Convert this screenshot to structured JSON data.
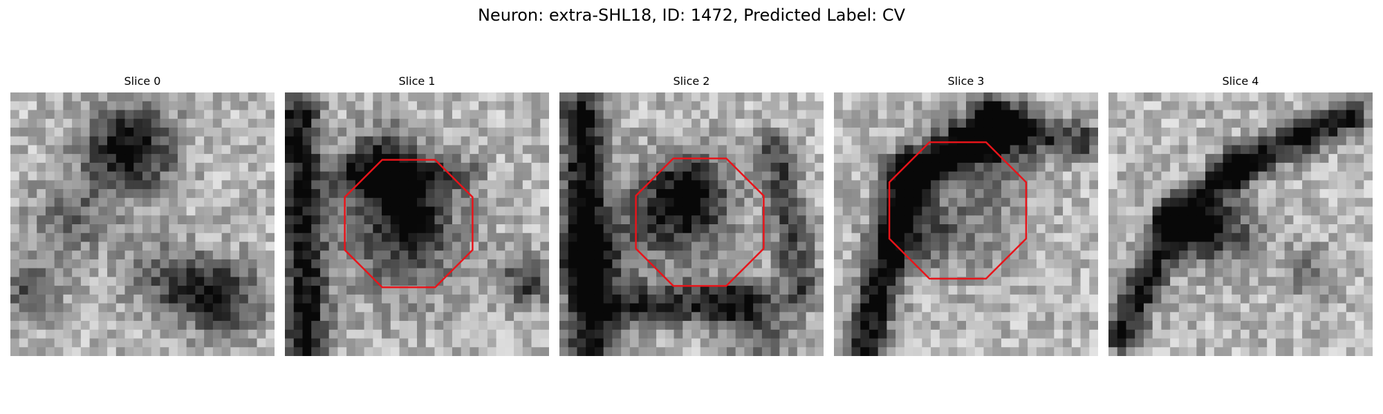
{
  "figure": {
    "title": "Neuron: extra-SHL18, ID: 1472, Predicted Label: CV"
  },
  "panels": [
    {
      "label": "Slice 0",
      "has_outline": false,
      "seed": 11
    },
    {
      "label": "Slice 1",
      "has_outline": true,
      "seed": 23
    },
    {
      "label": "Slice 2",
      "has_outline": true,
      "seed": 37
    },
    {
      "label": "Slice 3",
      "has_outline": true,
      "seed": 51
    },
    {
      "label": "Slice 4",
      "has_outline": false,
      "seed": 73
    }
  ],
  "colors": {
    "outline": "#e8141a"
  }
}
